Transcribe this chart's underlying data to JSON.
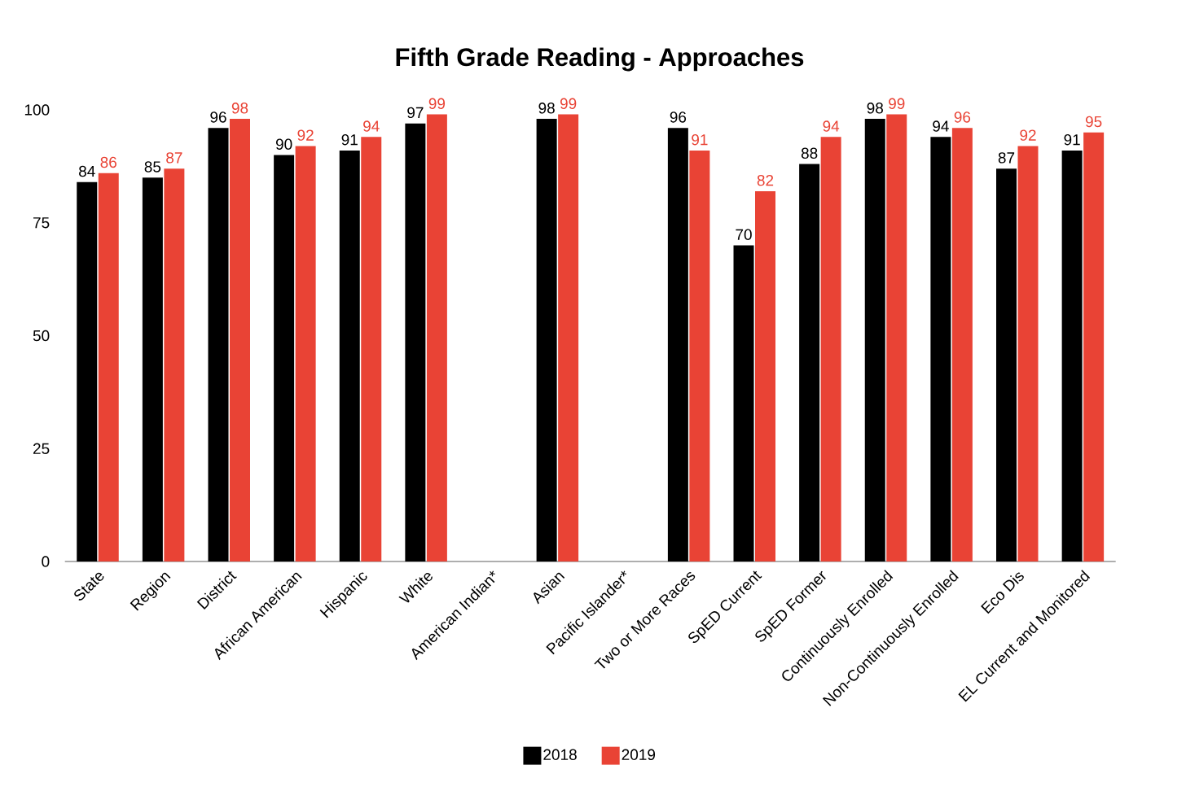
{
  "chart_data": {
    "type": "bar",
    "title": "Fifth Grade Reading - Approaches",
    "categories": [
      "State",
      "Region",
      "District",
      "African American",
      "Hispanic",
      "White",
      "American Indian*",
      "Asian",
      "Pacific Islander*",
      "Two or More Races",
      "SpED Current",
      "SpED Former",
      "Continuously Enrolled",
      "Non-Continuously Enrolled",
      "Eco Dis",
      "EL Current and Monitored"
    ],
    "series": [
      {
        "name": "2018",
        "color": "#000000",
        "values": [
          84,
          85,
          96,
          90,
          91,
          97,
          null,
          98,
          null,
          96,
          70,
          88,
          98,
          94,
          87,
          91
        ]
      },
      {
        "name": "2019",
        "color": "#e94335",
        "values": [
          86,
          87,
          98,
          92,
          94,
          99,
          null,
          99,
          null,
          91,
          82,
          94,
          99,
          96,
          92,
          95
        ]
      }
    ],
    "ylim": [
      0,
      100
    ],
    "yticks": [
      0,
      25,
      50,
      75,
      100
    ],
    "grid": false,
    "legend": "bottom",
    "data_labels": true
  }
}
